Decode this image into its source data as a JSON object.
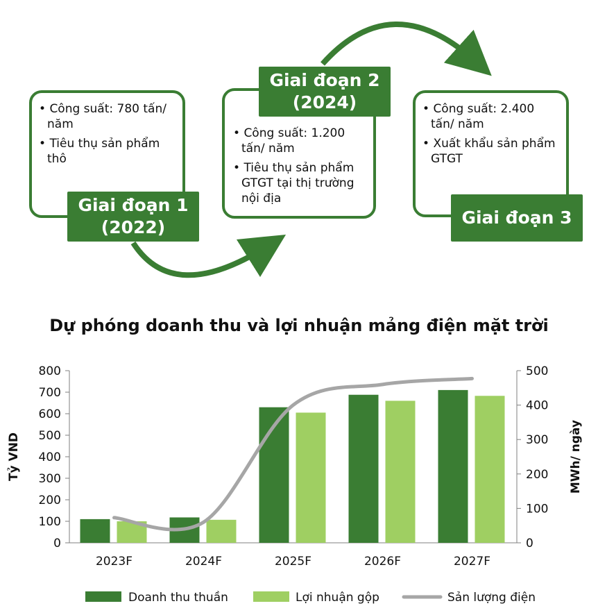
{
  "stages": [
    {
      "title_line1": "Giai đoạn 1",
      "title_line2": "(2022)",
      "bullets": [
        "Công suất: 780 tấn/ năm",
        "Tiêu thụ sản phẩm thô"
      ]
    },
    {
      "title_line1": "Giai đoạn 2",
      "title_line2": "(2024)",
      "bullets": [
        "Công suất: 1.200 tấn/ năm",
        "Tiêu thụ sản phẩm GTGT tại thị trường nội địa"
      ]
    },
    {
      "title_line1": "Giai đoạn 3",
      "title_line2": "",
      "bullets": [
        "Công suất: 2.400 tấn/ năm",
        "Xuất khẩu sản phẩm GTGT"
      ]
    }
  ],
  "colors": {
    "dark_green": "#3a7d33",
    "light_green": "#9fcf62",
    "gray": "#a6a6a6"
  },
  "chart_data": {
    "type": "bar",
    "title": "Dự phóng doanh thu và lợi nhuận mảng điện mặt trời",
    "categories": [
      "2023F",
      "2024F",
      "2025F",
      "2026F",
      "2027F"
    ],
    "ylabel": "Tỷ VND",
    "y2label": "MWh/ ngày",
    "ylim": [
      0,
      800
    ],
    "y2lim": [
      0,
      500
    ],
    "yticks": [
      "0",
      "100",
      "200",
      "300",
      "400",
      "500",
      "600",
      "700",
      "800"
    ],
    "y2ticks": [
      "0",
      "100",
      "200",
      "300",
      "400",
      "500"
    ],
    "series": [
      {
        "name": "Doanh thu thuần",
        "type": "bar",
        "axis": "left",
        "values": [
          110,
          118,
          630,
          688,
          710
        ]
      },
      {
        "name": "Lợi nhuận gộp",
        "type": "bar",
        "axis": "left",
        "values": [
          100,
          107,
          605,
          660,
          683
        ]
      },
      {
        "name": "Sản lượng điện",
        "type": "line",
        "axis": "right",
        "values": [
          73,
          60,
          400,
          460,
          477
        ]
      }
    ],
    "legend_position": "bottom",
    "grid": false
  }
}
